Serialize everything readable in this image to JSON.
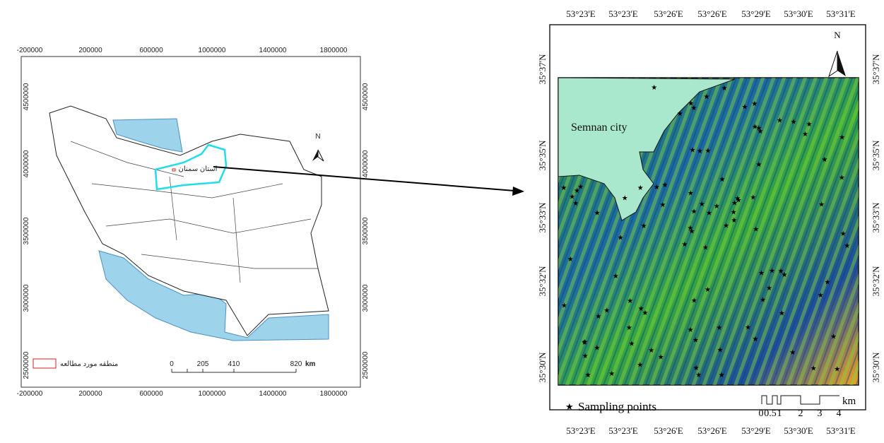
{
  "left_map": {
    "x_labels": [
      "-200000",
      "200000",
      "600000",
      "1000000",
      "1400000",
      "1800000"
    ],
    "y_labels": [
      "4500000",
      "4000000",
      "3500000",
      "3000000",
      "2500000"
    ],
    "north": "N",
    "province_label": "استان سمنان",
    "legend_label": "منطقه مورد مطالعه",
    "scale": {
      "labels": [
        "0",
        "205",
        "410",
        "820"
      ],
      "unit": "km"
    }
  },
  "right_map": {
    "x_labels": [
      "53°23'E",
      "53°23'E",
      "53°26'E",
      "53°26'E",
      "53°29'E",
      "53°30'E",
      "53°31'E"
    ],
    "y_labels": [
      "35°37'N",
      "35°35'N",
      "35°33'N",
      "35°32'N",
      "35°30'N"
    ],
    "north": "N",
    "city_label": "Semnan city",
    "legend_label": "Sampling points",
    "scale": {
      "labels": [
        "0",
        "0.5",
        "1",
        "2",
        "3",
        "4"
      ],
      "unit": "km"
    }
  }
}
